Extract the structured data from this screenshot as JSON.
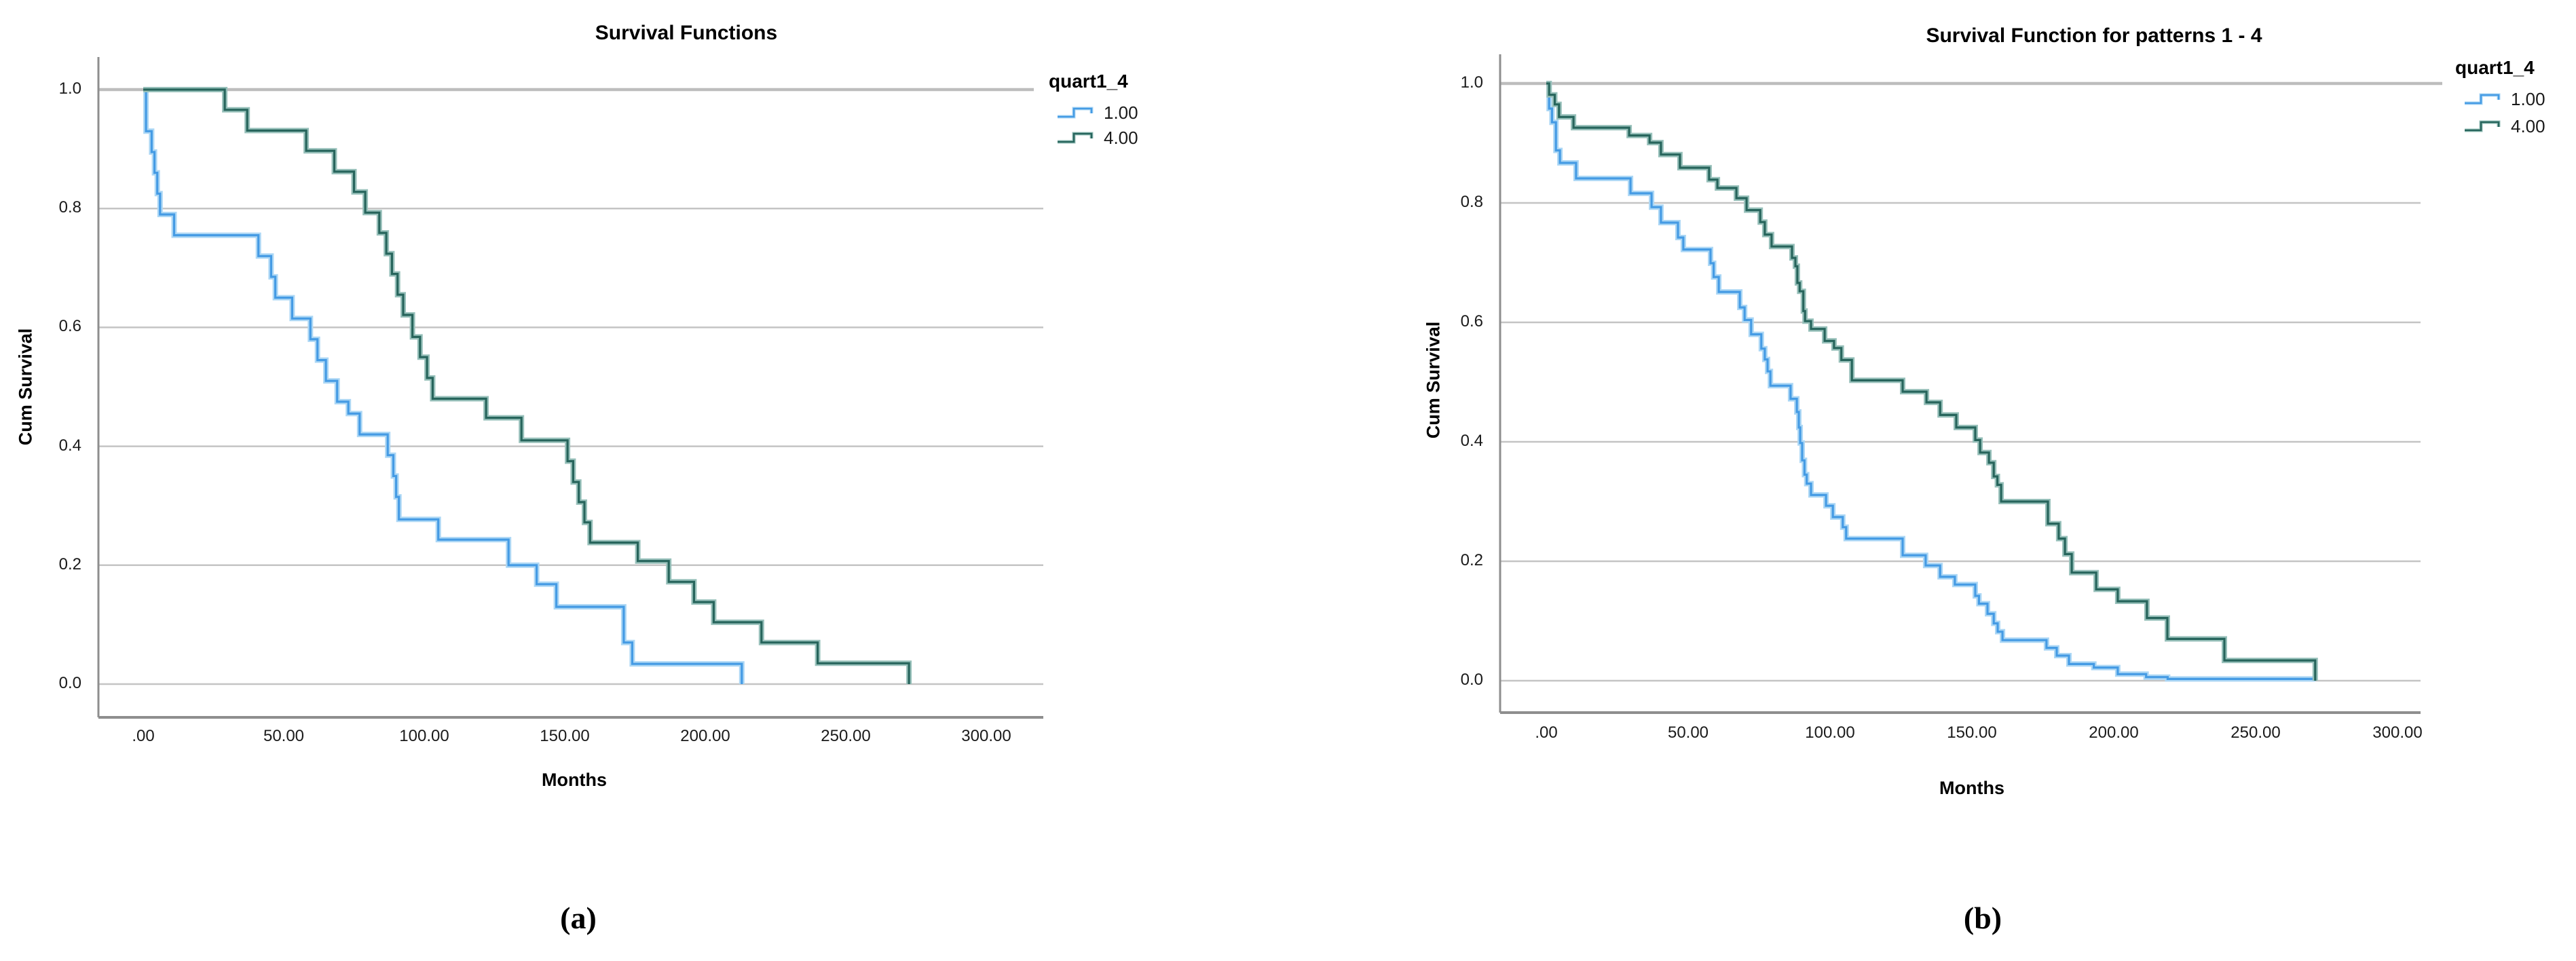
{
  "figure": {
    "background": "#ffffff",
    "panel_captions": [
      "(a)",
      "(b)"
    ]
  },
  "colors": {
    "grid": "#c4c4c4",
    "grid_major": "#bdbdbd",
    "axis": "#8e8e8e",
    "text": "#1a1a1a",
    "group1": "#459be4",
    "group1_halo": "#acd7f5",
    "group4": "#27655c",
    "group4_halo": "#97c0ba"
  },
  "chart_data": [
    {
      "type": "line",
      "subtype": "kaplan-meier-step",
      "title": "Survival Functions",
      "xlabel": "Months",
      "ylabel": "Cum Survival",
      "caption": "(a)",
      "grid": true,
      "xlim": [
        -16,
        313
      ],
      "ylim": [
        -0.056,
        1.05
      ],
      "legend": {
        "title": "quart1_4",
        "position": "outside-top-right",
        "items": [
          {
            "label": "1.00",
            "color": "#459be4",
            "halo": "#acd7f5"
          },
          {
            "label": "4.00",
            "color": "#27655c",
            "halo": "#97c0ba"
          }
        ]
      },
      "x_ticks": [
        {
          "value": 0,
          "label": ".00"
        },
        {
          "value": 50,
          "label": "50.00"
        },
        {
          "value": 100,
          "label": "100.00"
        },
        {
          "value": 150,
          "label": "150.00"
        },
        {
          "value": 200,
          "label": "200.00"
        },
        {
          "value": 250,
          "label": "250.00"
        },
        {
          "value": 300,
          "label": "300.00"
        }
      ],
      "y_ticks": [
        {
          "value": 1.0,
          "label": "1.0"
        },
        {
          "value": 0.8,
          "label": "0.8"
        },
        {
          "value": 0.6,
          "label": "0.6"
        },
        {
          "value": 0.4,
          "label": "0.4"
        },
        {
          "value": 0.2,
          "label": "0.2"
        },
        {
          "value": 0.0,
          "label": "0.0"
        }
      ],
      "series": [
        {
          "name": "1.00",
          "color": "#459be4",
          "halo": "#acd7f5",
          "steps": [
            [
              0,
              1
            ],
            [
              1,
              0.93
            ],
            [
              3,
              0.895
            ],
            [
              4,
              0.86
            ],
            [
              5,
              0.825
            ],
            [
              6,
              0.79
            ],
            [
              11,
              0.755
            ],
            [
              41,
              0.72
            ],
            [
              45.5,
              0.685
            ],
            [
              47,
              0.65
            ],
            [
              53,
              0.615
            ],
            [
              59.5,
              0.58
            ],
            [
              62,
              0.545
            ],
            [
              65,
              0.51
            ],
            [
              69,
              0.475
            ],
            [
              73,
              0.455
            ],
            [
              77,
              0.42
            ],
            [
              87,
              0.385
            ],
            [
              89,
              0.35
            ],
            [
              90,
              0.315
            ],
            [
              91,
              0.277
            ],
            [
              105,
              0.243
            ],
            [
              130,
              0.2
            ],
            [
              140,
              0.168
            ],
            [
              147,
              0.13
            ],
            [
              171,
              0.07
            ],
            [
              174,
              0.034
            ],
            [
              213,
              0
            ]
          ],
          "end": 213
        },
        {
          "name": "4.00",
          "color": "#27655c",
          "halo": "#97c0ba",
          "steps": [
            [
              0,
              1
            ],
            [
              29,
              0.966
            ],
            [
              37,
              0.931
            ],
            [
              58,
              0.897
            ],
            [
              68,
              0.862
            ],
            [
              75,
              0.828
            ],
            [
              79,
              0.793
            ],
            [
              84,
              0.759
            ],
            [
              86.5,
              0.724
            ],
            [
              88.5,
              0.69
            ],
            [
              90.5,
              0.655
            ],
            [
              92.5,
              0.621
            ],
            [
              95.8,
              0.584
            ],
            [
              98.5,
              0.55
            ],
            [
              101,
              0.515
            ],
            [
              103,
              0.48
            ],
            [
              122,
              0.448
            ],
            [
              134.6,
              0.41
            ],
            [
              151,
              0.375
            ],
            [
              153,
              0.34
            ],
            [
              155,
              0.306
            ],
            [
              157,
              0.272
            ],
            [
              159,
              0.238
            ],
            [
              176,
              0.207
            ],
            [
              187,
              0.172
            ],
            [
              196,
              0.138
            ],
            [
              203,
              0.104
            ],
            [
              220,
              0.07
            ],
            [
              240,
              0.035
            ],
            [
              272.5,
              0
            ]
          ],
          "end": 272.5
        }
      ]
    },
    {
      "type": "line",
      "subtype": "kaplan-meier-step",
      "title": "Survival Function for patterns 1 - 4",
      "xlabel": "Months",
      "ylabel": "Cum Survival",
      "caption": "(b)",
      "grid": true,
      "xlim": [
        -16,
        308
      ],
      "ylim": [
        -0.056,
        1.05
      ],
      "legend": {
        "title": "quart1_4",
        "position": "outside-top-right",
        "items": [
          {
            "label": "1.00",
            "color": "#459be4",
            "halo": "#acd7f5"
          },
          {
            "label": "4.00",
            "color": "#27655c",
            "halo": "#97c0ba"
          }
        ]
      },
      "x_ticks": [
        {
          "value": 0,
          "label": ".00"
        },
        {
          "value": 50,
          "label": "50.00"
        },
        {
          "value": 100,
          "label": "100.00"
        },
        {
          "value": 150,
          "label": "150.00"
        },
        {
          "value": 200,
          "label": "200.00"
        },
        {
          "value": 250,
          "label": "250.00"
        },
        {
          "value": 300,
          "label": "300.00"
        }
      ],
      "y_ticks": [
        {
          "value": 1.0,
          "label": "1.0"
        },
        {
          "value": 0.8,
          "label": "0.8"
        },
        {
          "value": 0.6,
          "label": "0.6"
        },
        {
          "value": 0.4,
          "label": "0.4"
        },
        {
          "value": 0.2,
          "label": "0.2"
        },
        {
          "value": 0.0,
          "label": "0.0"
        }
      ],
      "series": [
        {
          "name": "1.00",
          "color": "#459be4",
          "halo": "#acd7f5",
          "steps": [
            [
              0,
              1
            ],
            [
              1,
              0.958
            ],
            [
              2,
              0.935
            ],
            [
              3.4,
              0.888
            ],
            [
              4.8,
              0.867
            ],
            [
              10.5,
              0.841
            ],
            [
              29.7,
              0.816
            ],
            [
              37.1,
              0.793
            ],
            [
              40.4,
              0.767
            ],
            [
              46.4,
              0.742
            ],
            [
              48.3,
              0.722
            ],
            [
              57.9,
              0.699
            ],
            [
              59,
              0.676
            ],
            [
              60.8,
              0.651
            ],
            [
              68.2,
              0.625
            ],
            [
              69.9,
              0.604
            ],
            [
              72.2,
              0.58
            ],
            [
              75.8,
              0.556
            ],
            [
              77,
              0.538
            ],
            [
              78,
              0.518
            ],
            [
              79,
              0.494
            ],
            [
              86.1,
              0.472
            ],
            [
              88.3,
              0.45
            ],
            [
              89,
              0.424
            ],
            [
              89.5,
              0.398
            ],
            [
              90.2,
              0.369
            ],
            [
              91,
              0.345
            ],
            [
              91.8,
              0.33
            ],
            [
              93.3,
              0.311
            ],
            [
              98.6,
              0.293
            ],
            [
              101,
              0.274
            ],
            [
              104.5,
              0.257
            ],
            [
              105.7,
              0.238
            ],
            [
              125.6,
              0.21
            ],
            [
              133.7,
              0.193
            ],
            [
              138.8,
              0.174
            ],
            [
              144,
              0.161
            ],
            [
              151.2,
              0.142
            ],
            [
              152.5,
              0.129
            ],
            [
              155.5,
              0.112
            ],
            [
              157.7,
              0.096
            ],
            [
              159.1,
              0.082
            ],
            [
              160.8,
              0.068
            ],
            [
              176.3,
              0.055
            ],
            [
              179.9,
              0.042
            ],
            [
              184.2,
              0.028
            ],
            [
              193,
              0.022
            ],
            [
              201.4,
              0.011
            ],
            [
              211.4,
              0.006
            ],
            [
              219,
              0.003
            ]
          ],
          "end": 271
        },
        {
          "name": "4.00",
          "color": "#27655c",
          "halo": "#97c0ba",
          "steps": [
            [
              0,
              1
            ],
            [
              1,
              0.981
            ],
            [
              3,
              0.965
            ],
            [
              4.5,
              0.944
            ],
            [
              9.6,
              0.926
            ],
            [
              29.2,
              0.913
            ],
            [
              36.4,
              0.901
            ],
            [
              40.4,
              0.881
            ],
            [
              47.1,
              0.859
            ],
            [
              57.4,
              0.839
            ],
            [
              60.3,
              0.825
            ],
            [
              67,
              0.808
            ],
            [
              70.6,
              0.788
            ],
            [
              75.4,
              0.768
            ],
            [
              77,
              0.747
            ],
            [
              79.4,
              0.727
            ],
            [
              86.6,
              0.708
            ],
            [
              87.8,
              0.694
            ],
            [
              88.5,
              0.666
            ],
            [
              89.3,
              0.652
            ],
            [
              90.6,
              0.619
            ],
            [
              91.2,
              0.602
            ],
            [
              93.3,
              0.589
            ],
            [
              98.1,
              0.569
            ],
            [
              101.4,
              0.557
            ],
            [
              104,
              0.537
            ],
            [
              107.7,
              0.503
            ],
            [
              125.6,
              0.484
            ],
            [
              134,
              0.466
            ],
            [
              138.8,
              0.445
            ],
            [
              144.5,
              0.424
            ],
            [
              151.2,
              0.403
            ],
            [
              152.9,
              0.382
            ],
            [
              156,
              0.365
            ],
            [
              157.7,
              0.342
            ],
            [
              159,
              0.328
            ],
            [
              160.3,
              0.3
            ],
            [
              176.8,
              0.263
            ],
            [
              180.6,
              0.238
            ],
            [
              182.8,
              0.212
            ],
            [
              185.2,
              0.181
            ],
            [
              193.8,
              0.153
            ],
            [
              201.4,
              0.133
            ],
            [
              211.7,
              0.105
            ],
            [
              218.9,
              0.07
            ],
            [
              239,
              0.034
            ],
            [
              271,
              0
            ]
          ],
          "end": 271
        }
      ]
    }
  ]
}
